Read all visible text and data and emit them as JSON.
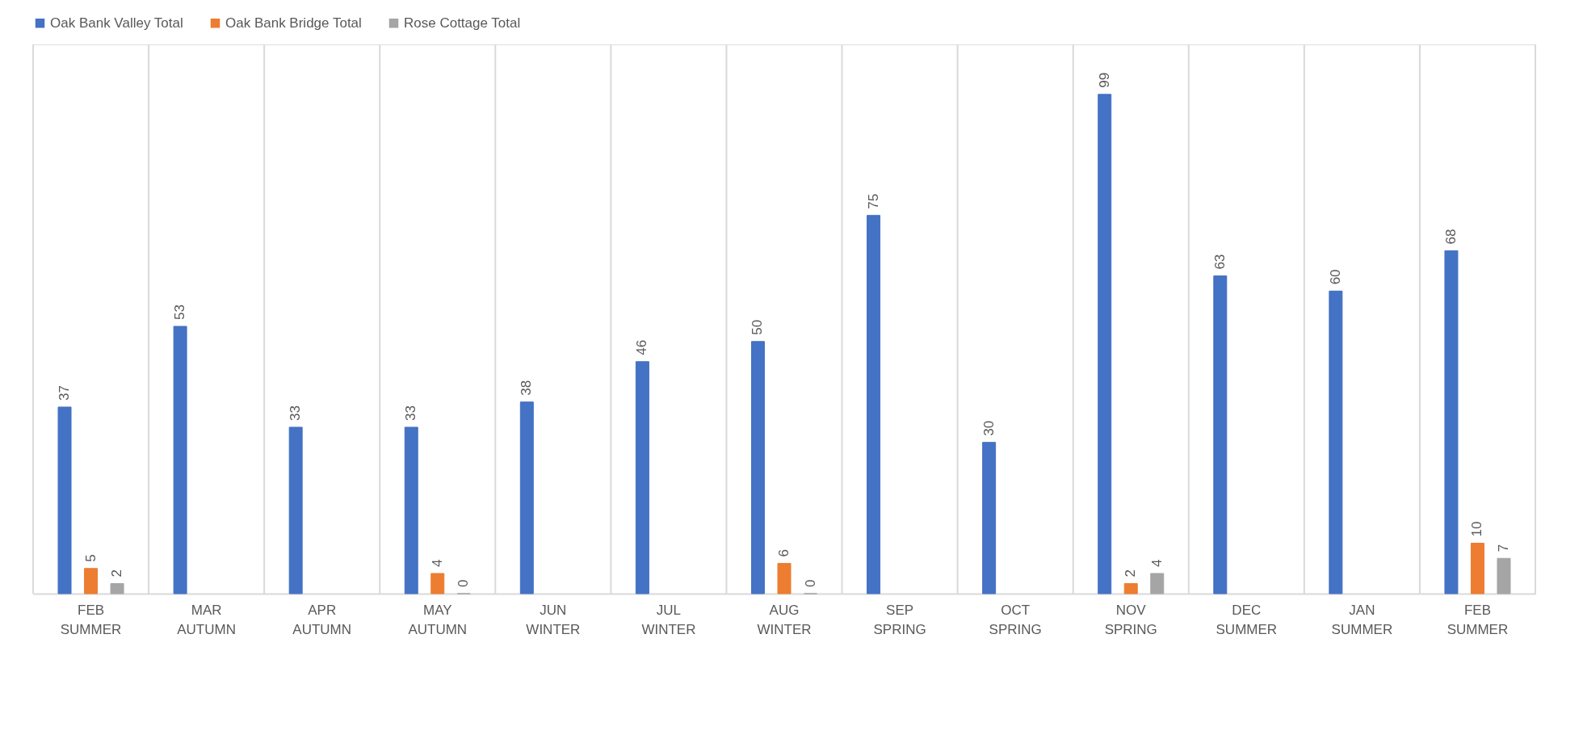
{
  "chart_data": {
    "type": "bar",
    "categories": [
      "FEB SUMMER",
      "MAR AUTUMN",
      "APR AUTUMN",
      "MAY AUTUMN",
      "JUN WINTER",
      "JUL WINTER",
      "AUG WINTER",
      "SEP SPRING",
      "OCT SPRING",
      "NOV SPRING",
      "DEC SUMMER",
      "JAN SUMMER",
      "FEB SUMMER"
    ],
    "series": [
      {
        "name": "Oak Bank Valley Total",
        "color": "#4472c4",
        "values": [
          37,
          53,
          33,
          33,
          38,
          46,
          50,
          75,
          30,
          99,
          63,
          60,
          68
        ]
      },
      {
        "name": "Oak Bank Bridge Total",
        "color": "#ed7d31",
        "values": [
          5,
          null,
          null,
          4,
          null,
          null,
          6,
          null,
          null,
          2,
          null,
          null,
          10
        ]
      },
      {
        "name": "Rose Cottage Total",
        "color": "#a5a5a5",
        "values": [
          2,
          null,
          null,
          0,
          null,
          null,
          0,
          null,
          null,
          4,
          null,
          null,
          7
        ]
      }
    ],
    "data_labels": true,
    "grid": "x",
    "legend": "top"
  }
}
